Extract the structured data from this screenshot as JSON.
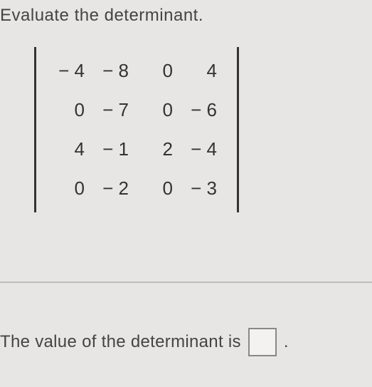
{
  "instruction": "Evaluate the determinant.",
  "matrix": {
    "type": "determinant",
    "rows": 4,
    "cols": 4,
    "values": [
      [
        "− 4",
        "− 8",
        "0",
        "4"
      ],
      [
        "0",
        "− 7",
        "0",
        "− 6"
      ],
      [
        "4",
        "− 1",
        "2",
        "− 4"
      ],
      [
        "0",
        "− 2",
        "0",
        "− 3"
      ]
    ],
    "bracket_color": "#333333",
    "text_color": "#333333",
    "fontsize": 26,
    "col_gap": 22,
    "row_gap": 24
  },
  "answer": {
    "prompt": "The value of the determinant is",
    "value": "",
    "period": "."
  },
  "colors": {
    "background": "#e8e6e4",
    "text": "#3a3a3a",
    "divider": "#bdbdbd",
    "input_border": "#888888"
  }
}
